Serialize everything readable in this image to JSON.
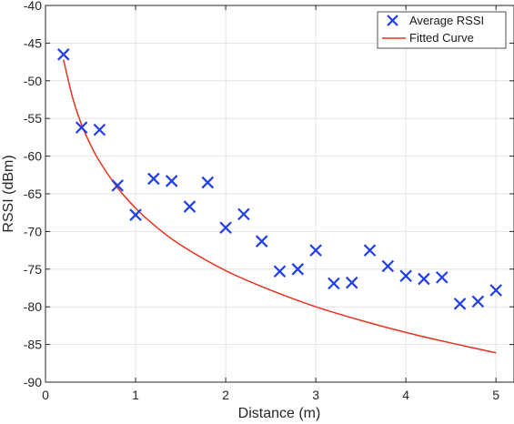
{
  "chart_data": {
    "type": "scatter",
    "xlabel": "Distance (m)",
    "ylabel": "RSSI (dBm)",
    "xlim": [
      0,
      5.2
    ],
    "ylim": [
      -90,
      -40
    ],
    "xticks": [
      0,
      1,
      2,
      3,
      4,
      5
    ],
    "yticks": [
      -90,
      -85,
      -80,
      -75,
      -70,
      -65,
      -60,
      -55,
      -50,
      -45,
      -40
    ],
    "grid": true,
    "legend_position": "top-right",
    "series": [
      {
        "name": "Average RSSI",
        "marker": "x",
        "color": "#1f3ee8",
        "x": [
          0.2,
          0.4,
          0.6,
          0.8,
          1.0,
          1.2,
          1.4,
          1.6,
          1.8,
          2.0,
          2.2,
          2.4,
          2.6,
          2.8,
          3.0,
          3.2,
          3.4,
          3.6,
          3.8,
          4.0,
          4.2,
          4.4,
          4.6,
          4.8,
          5.0
        ],
        "y": [
          -46.5,
          -56.2,
          -56.5,
          -63.9,
          -67.8,
          -63.0,
          -63.3,
          -66.7,
          -63.5,
          -69.5,
          -67.7,
          -71.3,
          -75.3,
          -75.0,
          -72.5,
          -76.9,
          -76.8,
          -72.5,
          -74.6,
          -75.9,
          -76.3,
          -76.1,
          -79.6,
          -79.3,
          -77.8
        ]
      },
      {
        "name": "Fitted Curve",
        "type": "line",
        "color": "#e8321e",
        "x": [
          0.2,
          0.3,
          0.4,
          0.5,
          0.6,
          0.8,
          1.0,
          1.2,
          1.5,
          2.0,
          2.5,
          3.0,
          3.5,
          4.0,
          4.5,
          5.0
        ],
        "y": [
          -47.2,
          -52.2,
          -55.8,
          -58.5,
          -60.7,
          -64.2,
          -66.9,
          -69.1,
          -71.8,
          -75.2,
          -77.8,
          -80.0,
          -81.8,
          -83.4,
          -84.8,
          -86.1
        ]
      }
    ]
  }
}
